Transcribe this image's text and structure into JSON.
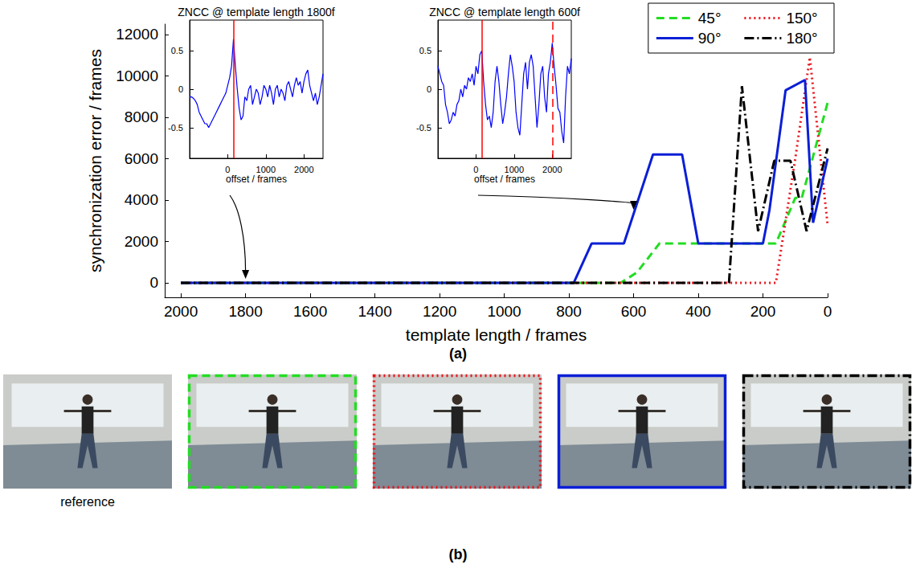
{
  "chart_data": [
    {
      "type": "line",
      "xlabel": "template length / frames",
      "ylabel": "synchronization error / frames",
      "xlim": [
        2050,
        0
      ],
      "xticks": [
        2000,
        1800,
        1600,
        1400,
        1200,
        1000,
        800,
        600,
        400,
        200,
        0
      ],
      "ylim": [
        -700,
        12500
      ],
      "yticks": [
        0,
        2000,
        4000,
        6000,
        8000,
        10000,
        12000
      ],
      "grid": false,
      "legend": "upper right",
      "series": [
        {
          "name": "45°",
          "color": "#22dd22",
          "line_style": "dashed",
          "x": [
            2000,
            640,
            590,
            520,
            160,
            100,
            80,
            0
          ],
          "values": [
            0,
            0,
            500,
            1900,
            1900,
            4100,
            4100,
            8700
          ]
        },
        {
          "name": "150°",
          "color": "#e8141c",
          "line_style": "dotted",
          "x": [
            2000,
            160,
            100,
            55,
            0
          ],
          "values": [
            0,
            0,
            6000,
            10900,
            2800
          ]
        },
        {
          "name": "90°",
          "color": "#0b1fd6",
          "line_style": "solid",
          "x": [
            2000,
            785,
            730,
            630,
            540,
            450,
            400,
            200,
            180,
            130,
            70,
            45,
            0
          ],
          "values": [
            0,
            0,
            1900,
            1900,
            6200,
            6200,
            1900,
            1900,
            3500,
            9300,
            9800,
            2900,
            6000
          ]
        },
        {
          "name": "180°",
          "color": "#000000",
          "line_style": "dashdot",
          "x": [
            2000,
            305,
            265,
            215,
            165,
            115,
            65,
            0
          ],
          "values": [
            0,
            0,
            9500,
            2500,
            5900,
            5900,
            2500,
            6500
          ]
        }
      ]
    },
    {
      "type": "line",
      "title": "ZNCC @ template length 1800f",
      "template_length": 1800,
      "xlabel": "offset / frames",
      "xlim": [
        -1000,
        2500
      ],
      "xticks": [
        0,
        1000,
        2000
      ],
      "ylim": [
        -0.9,
        0.9
      ],
      "yticks": [
        -0.5,
        0,
        0.5
      ],
      "grid": false,
      "color": "#0000ff",
      "x": [
        -1000,
        -950,
        -900,
        -850,
        -800,
        -750,
        -700,
        -650,
        -600,
        -550,
        -500,
        -450,
        -400,
        -350,
        -300,
        -250,
        -200,
        -150,
        -100,
        -50,
        0,
        50,
        100,
        150,
        200,
        250,
        300,
        350,
        400,
        450,
        500,
        550,
        600,
        650,
        700,
        750,
        800,
        850,
        900,
        950,
        1000,
        1050,
        1100,
        1150,
        1200,
        1250,
        1300,
        1350,
        1400,
        1450,
        1500,
        1550,
        1600,
        1650,
        1700,
        1750,
        1800,
        1850,
        1900,
        1950,
        2000,
        2050,
        2100,
        2150,
        2200,
        2250,
        2300,
        2350,
        2400,
        2450,
        2500
      ],
      "values": [
        -0.1,
        -0.1,
        -0.12,
        -0.15,
        -0.2,
        -0.3,
        -0.35,
        -0.4,
        -0.45,
        -0.45,
        -0.5,
        -0.45,
        -0.4,
        -0.35,
        -0.3,
        -0.25,
        -0.2,
        -0.15,
        -0.1,
        -0.05,
        0.05,
        0.15,
        0.3,
        0.65,
        0.3,
        0,
        -0.25,
        -0.4,
        -0.35,
        -0.1,
        -0.15,
        0,
        0.05,
        -0.2,
        -0.1,
        0,
        -0.05,
        -0.2,
        -0.1,
        0.05,
        0,
        -0.1,
        0.05,
        -0.05,
        -0.2,
        0,
        0.05,
        -0.1,
        0,
        -0.05,
        -0.15,
        0.05,
        0.1,
        0,
        -0.1,
        0.05,
        0.15,
        0.05,
        0.1,
        -0.05,
        0.1,
        0.2,
        0.25,
        0.05,
        -0.05,
        -0.15,
        -0.05,
        -0.2,
        -0.1,
        0.05,
        0.2
      ],
      "vlines": [
        {
          "x": 150,
          "line_style": "solid",
          "color": "#ff0000"
        }
      ]
    },
    {
      "type": "line",
      "title": "ZNCC @ template length 600f",
      "template_length": 600,
      "xlabel": "offset / frames",
      "xlim": [
        -1000,
        2500
      ],
      "xticks": [
        0,
        1000,
        2000
      ],
      "ylim": [
        -0.9,
        0.9
      ],
      "yticks": [
        -0.5,
        0,
        0.5
      ],
      "grid": false,
      "color": "#0000ff",
      "x": [
        -1000,
        -950,
        -900,
        -850,
        -800,
        -750,
        -700,
        -650,
        -600,
        -550,
        -500,
        -450,
        -400,
        -350,
        -300,
        -250,
        -200,
        -150,
        -100,
        -50,
        0,
        50,
        100,
        150,
        200,
        250,
        300,
        350,
        400,
        450,
        500,
        550,
        600,
        650,
        700,
        750,
        800,
        850,
        900,
        950,
        1000,
        1050,
        1100,
        1150,
        1200,
        1250,
        1300,
        1350,
        1400,
        1450,
        1500,
        1550,
        1600,
        1650,
        1700,
        1750,
        1800,
        1850,
        1900,
        1950,
        2000,
        2050,
        2100,
        2150,
        2200,
        2250,
        2300,
        2350,
        2400,
        2450,
        2500
      ],
      "values": [
        0.3,
        0.2,
        0.1,
        0.05,
        -0.2,
        -0.3,
        -0.45,
        -0.4,
        -0.3,
        -0.35,
        -0.2,
        -0.15,
        0,
        -0.1,
        0.05,
        0,
        0.15,
        0.1,
        0.2,
        0.05,
        0.3,
        0.2,
        0.45,
        0.5,
        0.1,
        -0.2,
        -0.4,
        -0.35,
        -0.5,
        -0.3,
        0.1,
        0.3,
        0.1,
        -0.2,
        -0.45,
        -0.3,
        -0.1,
        0.2,
        0.45,
        0.3,
        0.1,
        -0.3,
        -0.5,
        -0.6,
        -0.2,
        0.2,
        0.35,
        0,
        0.35,
        0.45,
        0.3,
        -0.1,
        -0.5,
        -0.2,
        0.2,
        0.3,
        -0.1,
        -0.3,
        0.2,
        0.35,
        0.6,
        0.3,
        0.05,
        -0.25,
        -0.3,
        -0.55,
        -0.7,
        -0.1,
        0.3,
        0.2,
        0.4
      ],
      "vlines": [
        {
          "x": 150,
          "line_style": "solid",
          "color": "#ff0000"
        },
        {
          "x": 2000,
          "line_style": "dashed",
          "color": "#ff0000"
        }
      ]
    }
  ],
  "panel_labels": [
    "(a)",
    "(b)"
  ],
  "photos": {
    "caption": "reference",
    "frames": [
      "45°",
      "150°",
      "90°",
      "180°"
    ]
  }
}
